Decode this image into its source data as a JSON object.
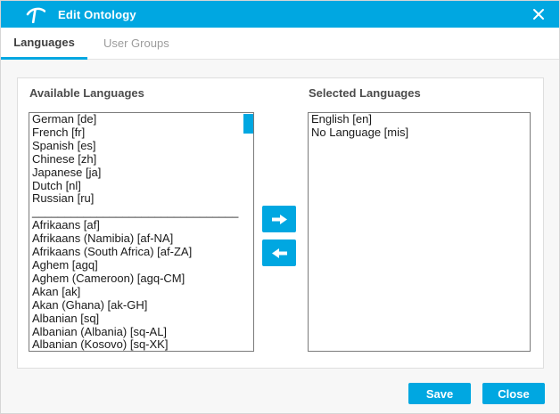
{
  "dialog": {
    "title": "Edit Ontology",
    "tabs": [
      {
        "label": "Languages",
        "active": true
      },
      {
        "label": "User Groups",
        "active": false
      }
    ],
    "available": {
      "label": "Available Languages",
      "items": [
        "German [de]",
        "French [fr]",
        "Spanish [es]",
        "Chinese [zh]",
        "Japanese [ja]",
        "Dutch [nl]",
        "Russian [ru]",
        "________________________________",
        "Afrikaans [af]",
        "Afrikaans (Namibia) [af-NA]",
        "Afrikaans (South Africa) [af-ZA]",
        "Aghem [agq]",
        "Aghem (Cameroon) [agq-CM]",
        "Akan [ak]",
        "Akan (Ghana) [ak-GH]",
        "Albanian [sq]",
        "Albanian (Albania) [sq-AL]",
        "Albanian (Kosovo) [sq-XK]"
      ]
    },
    "selected": {
      "label": "Selected Languages",
      "items": [
        "English [en]",
        "No Language [mis]"
      ]
    },
    "footer": {
      "save_label": "Save",
      "close_label": "Close"
    },
    "icons": {
      "logo": "pickaxe-icon",
      "close": "close-icon",
      "move_right": "arrow-right-icon",
      "move_left": "arrow-left-icon"
    },
    "colors": {
      "accent": "#00A7E1"
    }
  }
}
